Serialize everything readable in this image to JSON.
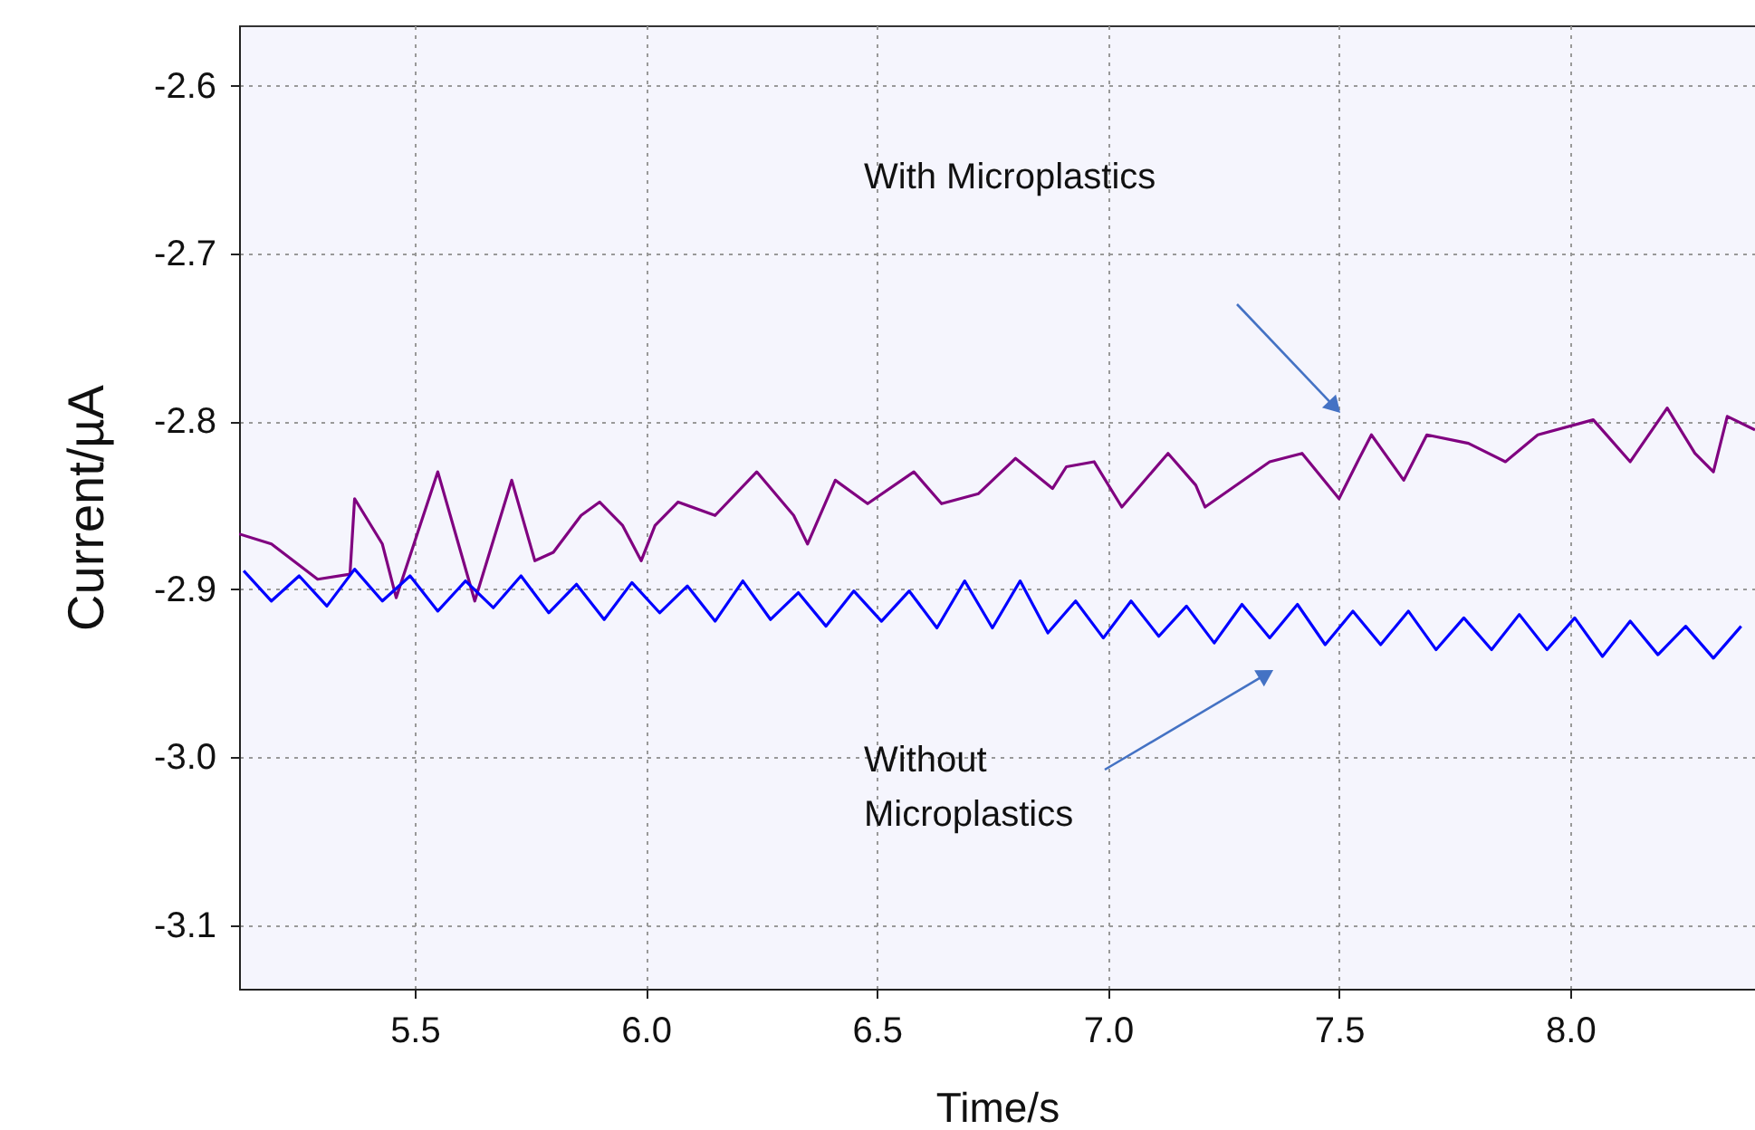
{
  "chart_data": {
    "type": "line",
    "xlabel": "Time/s",
    "ylabel": "Current/µA",
    "xlim": [
      5.12,
      8.4
    ],
    "ylim": [
      -3.138,
      -2.564
    ],
    "xticks": [
      {
        "value": 5.5,
        "label": "5.5"
      },
      {
        "value": 6,
        "label": "6.0"
      },
      {
        "value": 6.5,
        "label": "6.5"
      },
      {
        "value": 7,
        "label": "7.0"
      },
      {
        "value": 7.5,
        "label": "7.5"
      },
      {
        "value": 8,
        "label": "8.0"
      }
    ],
    "yticks": [
      {
        "value": -3.1,
        "label": "-3.1"
      },
      {
        "value": -3,
        "label": "-3.0"
      },
      {
        "value": -2.9,
        "label": "-2.9"
      },
      {
        "value": -2.8,
        "label": "-2.8"
      },
      {
        "value": -2.7,
        "label": "-2.7"
      },
      {
        "value": -2.6,
        "label": "-2.6"
      }
    ],
    "grid": true,
    "line_style": "solid",
    "annotations": [
      "With Microplastics",
      "Without\nMicroplastics"
    ],
    "series": [
      {
        "color": "#800080",
        "x": [
          5.12,
          5.19,
          5.29,
          5.36,
          5.37,
          5.43,
          5.46,
          5.55,
          5.63,
          5.71,
          5.76,
          5.8,
          5.86,
          5.9,
          5.95,
          5.99,
          6.02,
          6.07,
          6.15,
          6.24,
          6.32,
          6.35,
          6.41,
          6.48,
          6.58,
          6.64,
          6.72,
          6.8,
          6.88,
          6.91,
          6.97,
          7.03,
          7.13,
          7.19,
          7.21,
          7.35,
          7.42,
          7.5,
          7.54,
          7.57,
          7.64,
          7.69,
          7.78,
          7.86,
          7.93,
          8.05,
          8.13,
          8.21,
          8.27,
          8.31,
          8.34,
          8.4
        ],
        "values": [
          -2.867,
          -2.873,
          -2.894,
          -2.891,
          -2.846,
          -2.873,
          -2.905,
          -2.83,
          -2.907,
          -2.835,
          -2.883,
          -2.878,
          -2.856,
          -2.848,
          -2.862,
          -2.883,
          -2.862,
          -2.848,
          -2.856,
          -2.83,
          -2.856,
          -2.873,
          -2.835,
          -2.849,
          -2.83,
          -2.849,
          -2.843,
          -2.822,
          -2.84,
          -2.827,
          -2.824,
          -2.851,
          -2.819,
          -2.838,
          -2.851,
          -2.824,
          -2.819,
          -2.846,
          -2.824,
          -2.808,
          -2.835,
          -2.808,
          -2.813,
          -2.824,
          -2.808,
          -2.799,
          -2.824,
          -2.792,
          -2.819,
          -2.83,
          -2.797,
          -2.805
        ]
      },
      {
        "color": "#0000ff",
        "x": [
          5.13,
          5.19,
          5.25,
          5.31,
          5.37,
          5.43,
          5.49,
          5.55,
          5.61,
          5.67,
          5.73,
          5.79,
          5.85,
          5.91,
          5.97,
          6.03,
          6.09,
          6.15,
          6.21,
          6.27,
          6.33,
          6.39,
          6.45,
          6.51,
          6.57,
          6.63,
          6.69,
          6.75,
          6.81,
          6.87,
          6.93,
          6.99,
          7.05,
          7.11,
          7.17,
          7.23,
          7.29,
          7.35,
          7.41,
          7.47,
          7.53,
          7.59,
          7.65,
          7.71,
          7.77,
          7.83,
          7.89,
          7.95,
          8.01,
          8.07,
          8.13,
          8.19,
          8.25,
          8.31,
          8.37
        ],
        "values": [
          -2.889,
          -2.907,
          -2.892,
          -2.91,
          -2.888,
          -2.907,
          -2.892,
          -2.913,
          -2.895,
          -2.911,
          -2.892,
          -2.914,
          -2.897,
          -2.918,
          -2.896,
          -2.914,
          -2.898,
          -2.919,
          -2.895,
          -2.918,
          -2.902,
          -2.922,
          -2.901,
          -2.919,
          -2.901,
          -2.923,
          -2.895,
          -2.923,
          -2.895,
          -2.926,
          -2.907,
          -2.929,
          -2.907,
          -2.928,
          -2.91,
          -2.932,
          -2.909,
          -2.929,
          -2.909,
          -2.933,
          -2.913,
          -2.933,
          -2.913,
          -2.936,
          -2.917,
          -2.936,
          -2.915,
          -2.936,
          -2.917,
          -2.94,
          -2.919,
          -2.939,
          -2.922,
          -2.941,
          -2.922
        ]
      }
    ]
  }
}
